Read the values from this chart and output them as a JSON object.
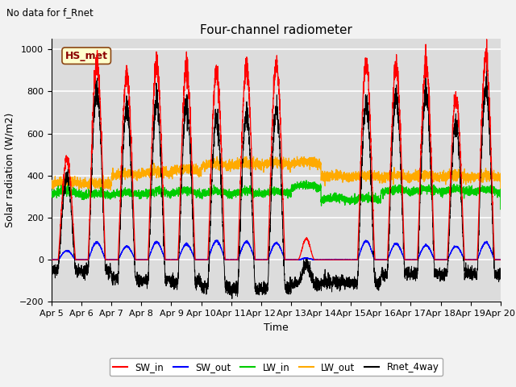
{
  "title": "Four-channel radiometer",
  "top_left_text": "No data for f_Rnet",
  "ylabel": "Solar radiation (W/m2)",
  "xlabel": "Time",
  "ylim": [
    -200,
    1050
  ],
  "xlim": [
    0,
    15
  ],
  "x_tick_labels": [
    "Apr 5",
    "Apr 6",
    "Apr 7",
    "Apr 8",
    "Apr 9",
    "Apr 10",
    "Apr 11",
    "Apr 12",
    "Apr 13",
    "Apr 14",
    "Apr 15",
    "Apr 16",
    "Apr 17",
    "Apr 18",
    "Apr 19",
    "Apr 20"
  ],
  "legend_entries": [
    "SW_in",
    "SW_out",
    "LW_in",
    "LW_out",
    "Rnet_4way"
  ],
  "legend_colors": [
    "#ff0000",
    "#0000ff",
    "#00cc00",
    "#ffaa00",
    "#000000"
  ],
  "sw_in_peaks": [
    480,
    940,
    870,
    930,
    900,
    890,
    910,
    930,
    100,
    0,
    930,
    920,
    930,
    770,
    960
  ],
  "station_label": "HS_met",
  "station_label_color": "#8B0000",
  "station_box_facecolor": "#ffffcc",
  "station_box_edgecolor": "#8B4513",
  "background_color": "#dcdcdc",
  "title_fontsize": 11,
  "label_fontsize": 9,
  "tick_fontsize": 8
}
